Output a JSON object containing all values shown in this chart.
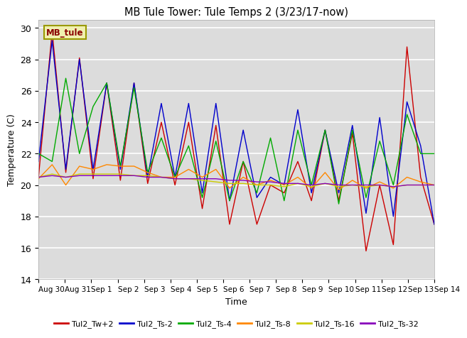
{
  "title": "MB Tule Tower: Tule Temps 2 (3/23/17-now)",
  "xlabel": "Time",
  "ylabel": "Temperature (C)",
  "legend_label": "MB_tule",
  "ylim": [
    14,
    30.5
  ],
  "xlim": [
    0,
    15
  ],
  "background_color": "#e8e8e8",
  "plot_bg_color": "#dcdcdc",
  "series_colors": {
    "Tul2_Tw+2": "#cc0000",
    "Tul2_Ts-2": "#0000cc",
    "Tul2_Ts-4": "#00aa00",
    "Tul2_Ts-8": "#ff8800",
    "Tul2_Ts-16": "#cccc00",
    "Tul2_Ts-32": "#8800bb"
  },
  "xtick_labels": [
    "Aug 30",
    "Aug 31",
    "Sep 1",
    "Sep 2",
    "Sep 3",
    "Sep 4",
    "Sep 5",
    "Sep 6",
    "Sep 7",
    "Sep 8",
    "Sep 9",
    "Sep 10",
    "Sep 11",
    "Sep 12",
    "Sep 13",
    "Sep 14"
  ],
  "ytick_labels": [
    14,
    16,
    18,
    20,
    22,
    24,
    26,
    28,
    30
  ],
  "line_width": 1.0,
  "series_order": [
    "Tul2_Tw+2",
    "Tul2_Ts-2",
    "Tul2_Ts-4",
    "Tul2_Ts-8",
    "Tul2_Ts-16",
    "Tul2_Ts-32"
  ],
  "series": {
    "Tul2_Tw+2": [
      20.5,
      29.8,
      20.8,
      28.1,
      20.4,
      26.5,
      20.3,
      26.5,
      20.1,
      24.0,
      20.0,
      24.0,
      18.5,
      23.8,
      17.5,
      21.5,
      17.5,
      20.0,
      19.5,
      21.5,
      19.0,
      23.5,
      19.0,
      23.3,
      15.8,
      20.0,
      16.2,
      28.8,
      20.5,
      17.5
    ],
    "Tul2_Ts-2": [
      21.5,
      29.2,
      21.0,
      28.0,
      21.0,
      26.5,
      21.0,
      26.5,
      20.5,
      25.2,
      20.5,
      25.2,
      19.5,
      25.2,
      19.0,
      23.5,
      19.2,
      20.5,
      20.0,
      24.8,
      19.5,
      23.5,
      19.5,
      23.8,
      18.2,
      24.3,
      18.0,
      25.3,
      22.5,
      17.5
    ],
    "Tul2_Ts-4": [
      22.0,
      21.5,
      26.8,
      22.0,
      25.0,
      26.5,
      21.2,
      26.2,
      20.8,
      23.0,
      20.5,
      22.5,
      19.2,
      22.8,
      19.0,
      21.5,
      19.5,
      23.0,
      19.0,
      23.5,
      20.0,
      23.5,
      18.8,
      23.5,
      19.2,
      22.8,
      20.0,
      24.5,
      22.0,
      22.0
    ],
    "Tul2_Ts-8": [
      20.4,
      21.3,
      20.0,
      21.2,
      21.0,
      21.3,
      21.2,
      21.2,
      20.8,
      20.5,
      20.5,
      21.0,
      20.5,
      21.0,
      19.8,
      20.5,
      20.0,
      20.3,
      20.0,
      20.5,
      19.8,
      20.8,
      19.7,
      20.3,
      19.8,
      20.2,
      19.8,
      20.5,
      20.2,
      20.0
    ],
    "Tul2_Ts-16": [
      20.5,
      20.7,
      20.5,
      20.7,
      20.7,
      20.7,
      20.7,
      20.6,
      20.6,
      20.5,
      20.4,
      20.4,
      20.3,
      20.2,
      20.1,
      20.1,
      20.0,
      20.0,
      19.9,
      20.1,
      19.9,
      20.1,
      19.9,
      20.0,
      19.9,
      20.0,
      19.9,
      20.0,
      20.0,
      20.0
    ],
    "Tul2_Ts-32": [
      20.5,
      20.6,
      20.5,
      20.6,
      20.6,
      20.6,
      20.6,
      20.6,
      20.5,
      20.5,
      20.4,
      20.4,
      20.4,
      20.4,
      20.3,
      20.3,
      20.2,
      20.2,
      20.1,
      20.1,
      20.0,
      20.1,
      20.0,
      20.0,
      20.0,
      20.0,
      19.9,
      20.0,
      20.0,
      20.0
    ]
  }
}
